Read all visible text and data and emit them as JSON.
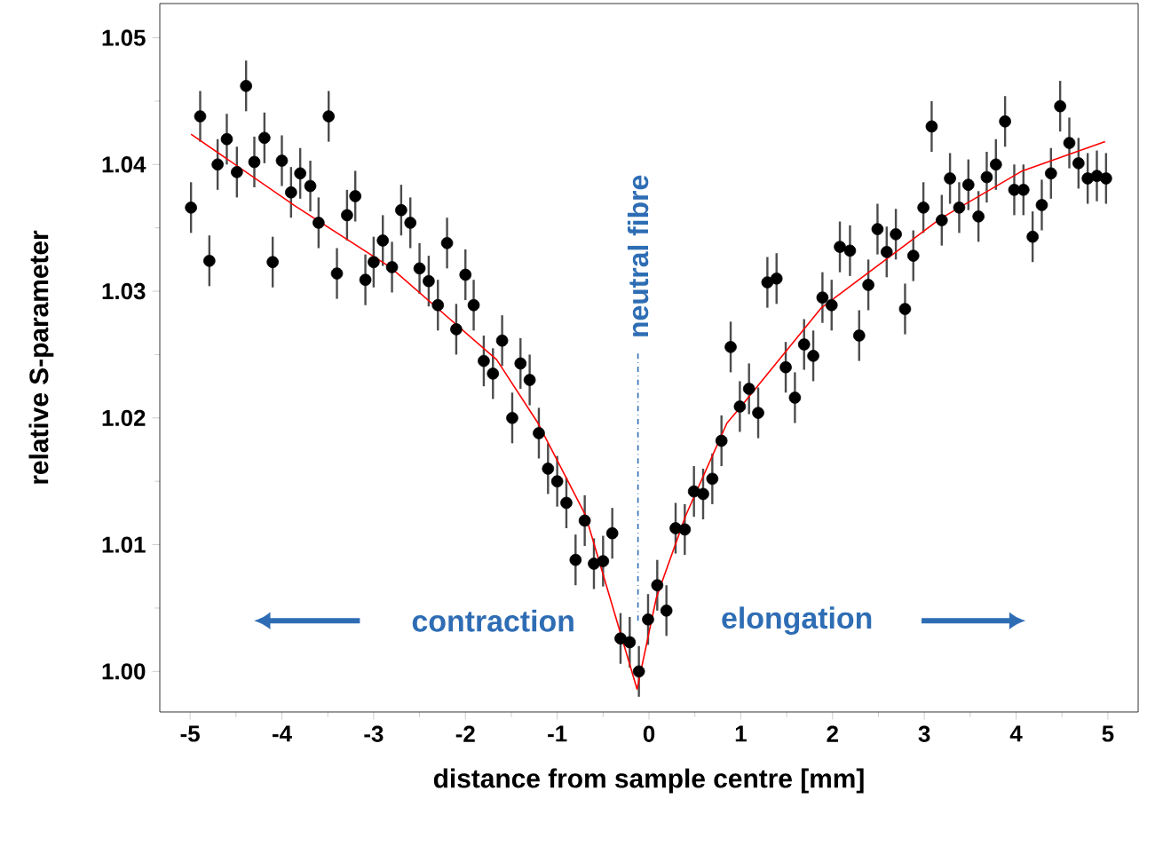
{
  "chart_data": {
    "type": "scatter",
    "xlabel": "distance from sample centre [mm]",
    "ylabel": "relative S-parameter",
    "xlim": [
      -5.33,
      5.33
    ],
    "ylim": [
      0.9968,
      1.0527
    ],
    "xticks": [
      -5,
      -4,
      -3,
      -2,
      -1,
      0,
      1,
      2,
      3,
      4,
      5
    ],
    "yticks": [
      {
        "value": 1.0,
        "label": "1.00"
      },
      1.01,
      1.02,
      1.03,
      1.04,
      1.05
    ],
    "grid": false,
    "annotations": [
      "contraction",
      "elongation"
    ],
    "ref_lines": [
      {
        "axis": "x",
        "value": -0.12,
        "label": "neutral fibre",
        "color": "#2e6db4",
        "line_style": "dashdot"
      }
    ],
    "series": [
      {
        "color": "#000000",
        "marker": "circle",
        "x": [
          -4.99,
          -4.89,
          -4.79,
          -4.7,
          -4.6,
          -4.49,
          -4.39,
          -4.3,
          -4.19,
          -4.1,
          -4.0,
          -3.9,
          -3.8,
          -3.69,
          -3.6,
          -3.49,
          -3.4,
          -3.29,
          -3.2,
          -3.09,
          -3.0,
          -2.9,
          -2.8,
          -2.7,
          -2.6,
          -2.5,
          -2.4,
          -2.3,
          -2.2,
          -2.1,
          -2.0,
          -1.91,
          -1.8,
          -1.7,
          -1.6,
          -1.49,
          -1.4,
          -1.3,
          -1.2,
          -1.1,
          -1.0,
          -0.9,
          -0.8,
          -0.7,
          -0.6,
          -0.5,
          -0.4,
          -0.31,
          -0.21,
          -0.11,
          -0.01,
          0.09,
          0.19,
          0.29,
          0.39,
          0.49,
          0.59,
          0.69,
          0.79,
          0.89,
          0.99,
          1.09,
          1.19,
          1.29,
          1.39,
          1.49,
          1.59,
          1.69,
          1.79,
          1.89,
          1.99,
          2.08,
          2.19,
          2.29,
          2.39,
          2.49,
          2.59,
          2.69,
          2.79,
          2.88,
          2.99,
          3.08,
          3.19,
          3.28,
          3.38,
          3.48,
          3.59,
          3.68,
          3.78,
          3.88,
          3.98,
          4.08,
          4.18,
          4.28,
          4.38,
          4.48,
          4.58,
          4.68,
          4.78,
          4.88,
          4.98
        ],
        "values": [
          1.0366,
          1.0438,
          1.0324,
          1.04,
          1.042,
          1.0394,
          1.0462,
          1.0402,
          1.0421,
          1.0323,
          1.0403,
          1.0378,
          1.0393,
          1.0383,
          1.0354,
          1.0438,
          1.0314,
          1.036,
          1.0375,
          1.0309,
          1.0323,
          1.034,
          1.0319,
          1.0364,
          1.0354,
          1.0318,
          1.0308,
          1.0289,
          1.0338,
          1.027,
          1.0313,
          1.0289,
          1.0245,
          1.0235,
          1.0261,
          1.02,
          1.0243,
          1.023,
          1.0188,
          1.016,
          1.015,
          1.0133,
          1.0088,
          1.0119,
          1.0085,
          1.0087,
          1.0109,
          1.0026,
          1.0023,
          1.0,
          1.0041,
          1.0068,
          1.0048,
          1.0113,
          1.0112,
          1.0142,
          1.014,
          1.0152,
          1.0182,
          1.0256,
          1.0209,
          1.0223,
          1.0204,
          1.0307,
          1.031,
          1.024,
          1.0216,
          1.0258,
          1.0249,
          1.0295,
          1.0289,
          1.0335,
          1.0332,
          1.0265,
          1.0305,
          1.0349,
          1.0331,
          1.0345,
          1.0286,
          1.0328,
          1.0366,
          1.043,
          1.0356,
          1.0389,
          1.0366,
          1.0384,
          1.0359,
          1.039,
          1.04,
          1.0434,
          1.038,
          1.038,
          1.0343,
          1.0368,
          1.0393,
          1.0446,
          1.0417,
          1.0401,
          1.0389,
          1.0391,
          1.0389
        ],
        "errors": [
          0.002,
          0.002,
          0.002,
          0.002,
          0.002,
          0.002,
          0.002,
          0.002,
          0.002,
          0.002,
          0.002,
          0.002,
          0.002,
          0.002,
          0.002,
          0.002,
          0.002,
          0.002,
          0.002,
          0.002,
          0.002,
          0.002,
          0.002,
          0.002,
          0.002,
          0.002,
          0.002,
          0.002,
          0.002,
          0.002,
          0.002,
          0.002,
          0.002,
          0.002,
          0.002,
          0.002,
          0.002,
          0.002,
          0.002,
          0.002,
          0.002,
          0.002,
          0.002,
          0.002,
          0.002,
          0.002,
          0.002,
          0.002,
          0.002,
          0.002,
          0.002,
          0.002,
          0.002,
          0.002,
          0.002,
          0.002,
          0.002,
          0.002,
          0.002,
          0.002,
          0.002,
          0.002,
          0.002,
          0.002,
          0.002,
          0.002,
          0.002,
          0.002,
          0.002,
          0.002,
          0.002,
          0.002,
          0.002,
          0.002,
          0.002,
          0.002,
          0.002,
          0.002,
          0.002,
          0.002,
          0.002,
          0.002,
          0.002,
          0.002,
          0.002,
          0.002,
          0.002,
          0.002,
          0.002,
          0.002,
          0.002,
          0.002,
          0.002,
          0.002,
          0.002,
          0.002,
          0.002,
          0.002,
          0.002,
          0.002,
          0.002
        ]
      },
      {
        "type": "line",
        "color": "#ff0000",
        "marker": "none",
        "line_style": "solid",
        "x": [
          -4.99,
          -3.85,
          -2.82,
          -1.66,
          -1.21,
          -0.69,
          -0.31,
          -0.13,
          0.08,
          0.4,
          0.85,
          0.98,
          1.88,
          3.17,
          4.07,
          4.97
        ],
        "values": [
          1.0424,
          1.0367,
          1.0319,
          1.0246,
          1.0196,
          1.0123,
          1.003,
          0.9986,
          1.0058,
          1.0123,
          1.0196,
          1.0207,
          1.0287,
          1.0357,
          1.0395,
          1.0418
        ]
      }
    ]
  }
}
